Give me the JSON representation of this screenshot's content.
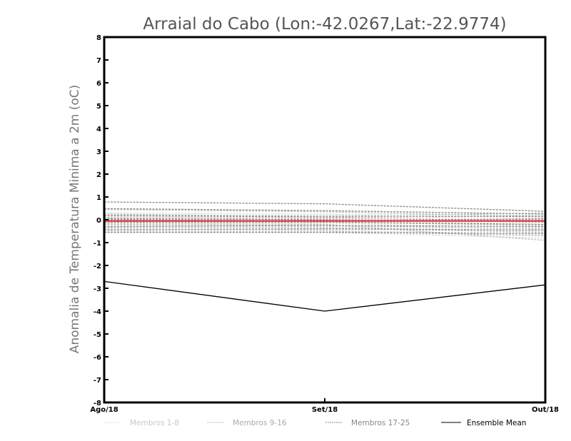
{
  "chart_data": {
    "type": "line",
    "title": "Arraial do Cabo (Lon:-42.0267,Lat:-22.9774)",
    "ylabel": "Anomalia de Temperatura Minima a 2m (oC)",
    "xlabel": "",
    "categories": [
      "Ago/18",
      "Set/18",
      "Out/18"
    ],
    "ylim": [
      -8,
      8
    ],
    "yticks": [
      "-8",
      "-7",
      "-6",
      "-5",
      "-4",
      "-3",
      "-2",
      "-1",
      "0",
      "1",
      "2",
      "3",
      "4",
      "5",
      "6",
      "7",
      "8"
    ],
    "grid": false,
    "legend_position": "bottom",
    "legend": [
      "Membros 1-8",
      "Membros 9-16",
      "Membros 17-25",
      "Ensemble Mean"
    ],
    "colors": {
      "m1": "#dcdcdc",
      "m2": "#bdbdbd",
      "m3": "#8a8a8a",
      "mean": "#000000",
      "zero": "#ee4444"
    },
    "series": [
      {
        "name": "Membros 1-8",
        "members": [
          [
            0.3,
            0.25,
            0.1
          ],
          [
            0.15,
            0.1,
            -0.05
          ],
          [
            0.05,
            0.0,
            -0.2
          ],
          [
            -0.1,
            -0.15,
            -0.35
          ],
          [
            -0.25,
            -0.3,
            -0.5
          ],
          [
            -0.4,
            -0.45,
            -0.65
          ],
          [
            0.2,
            0.2,
            0.2
          ],
          [
            -0.55,
            -0.55,
            -0.8
          ]
        ]
      },
      {
        "name": "Membros 9-16",
        "members": [
          [
            0.45,
            0.35,
            0.15
          ],
          [
            0.1,
            0.05,
            0.0
          ],
          [
            -0.05,
            -0.1,
            -0.25
          ],
          [
            -0.2,
            -0.25,
            -0.4
          ],
          [
            -0.35,
            -0.35,
            -0.55
          ],
          [
            -0.5,
            -0.5,
            -0.7
          ],
          [
            0.25,
            0.15,
            0.3
          ],
          [
            -0.15,
            -0.2,
            -0.9
          ]
        ]
      },
      {
        "name": "Membros 17-25",
        "members": [
          [
            0.78,
            0.7,
            0.37
          ],
          [
            0.49,
            0.4,
            0.25
          ],
          [
            0.19,
            0.12,
            0.15
          ],
          [
            0.05,
            0.0,
            -0.1
          ],
          [
            -0.1,
            -0.1,
            -0.2
          ],
          [
            -0.3,
            -0.25,
            -0.3
          ],
          [
            -0.44,
            -0.4,
            -0.45
          ],
          [
            -0.55,
            -0.55,
            -0.6
          ],
          [
            0.0,
            -0.05,
            0.05
          ]
        ]
      },
      {
        "name": "Ensemble Mean",
        "values": [
          -2.7,
          -4.0,
          -2.85
        ]
      }
    ],
    "zero_line": -0.05
  }
}
